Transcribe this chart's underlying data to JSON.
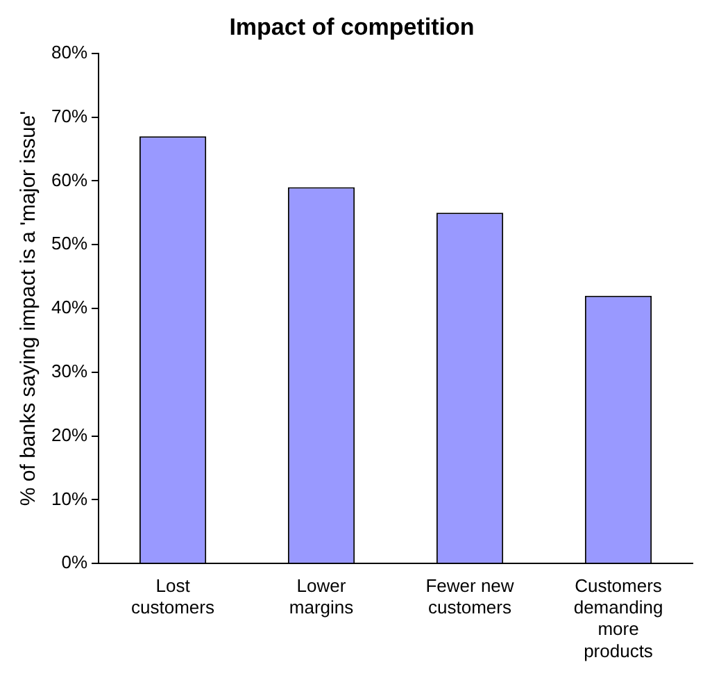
{
  "chart_data": {
    "type": "bar",
    "title": "Impact of competition",
    "ylabel": "% of banks saying impact is a 'major issue'",
    "categories": [
      "Lost customers",
      "Lower margins",
      "Fewer new customers",
      "Customers demanding more products"
    ],
    "values": [
      67,
      59,
      55,
      42
    ],
    "color": "#9999ff",
    "ylim": [
      0,
      80
    ],
    "yticks": [
      {
        "value": 0,
        "label": "0%"
      },
      {
        "value": 10,
        "label": "10%"
      },
      {
        "value": 20,
        "label": "20%"
      },
      {
        "value": 30,
        "label": "30%"
      },
      {
        "value": 40,
        "label": "40%"
      },
      {
        "value": 50,
        "label": "50%"
      },
      {
        "value": 60,
        "label": "60%"
      },
      {
        "value": 70,
        "label": "70%"
      },
      {
        "value": 80,
        "label": "80%"
      }
    ],
    "grid": false,
    "legend": false
  }
}
